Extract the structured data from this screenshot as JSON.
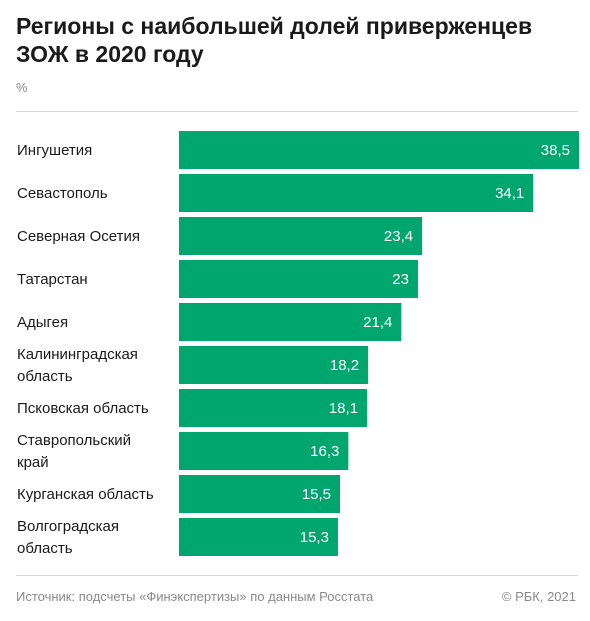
{
  "title": "Регионы с наибольшей долей приверженцев ЗОЖ в 2020 году",
  "unit": "%",
  "source": "Источник: подсчеты «Финэкспертизы» по данным Росстата",
  "credit": "© РБК, 2021",
  "colors": {
    "bar": "#00a66e",
    "bar_label": "#ffffff",
    "category_label": "#1a1a1a"
  },
  "chart_data": {
    "type": "bar",
    "orientation": "horizontal",
    "categories": [
      "Ингушетия",
      "Севастополь",
      "Северная Осетия",
      "Татарстан",
      "Адыгея",
      "Калининградская\nобласть",
      "Псковская область",
      "Ставропольский\nкрай",
      "Курганская область",
      "Волгоградская\nобласть"
    ],
    "values": [
      38.5,
      34.1,
      23.4,
      23,
      21.4,
      18.2,
      18.1,
      16.3,
      15.5,
      15.3
    ],
    "value_labels": [
      "38,5",
      "34,1",
      "23,4",
      "23",
      "21,4",
      "18,2",
      "18,1",
      "16,3",
      "15,5",
      "15,3"
    ],
    "xlim": [
      0,
      38.5
    ],
    "grid": false,
    "legend": "none"
  }
}
